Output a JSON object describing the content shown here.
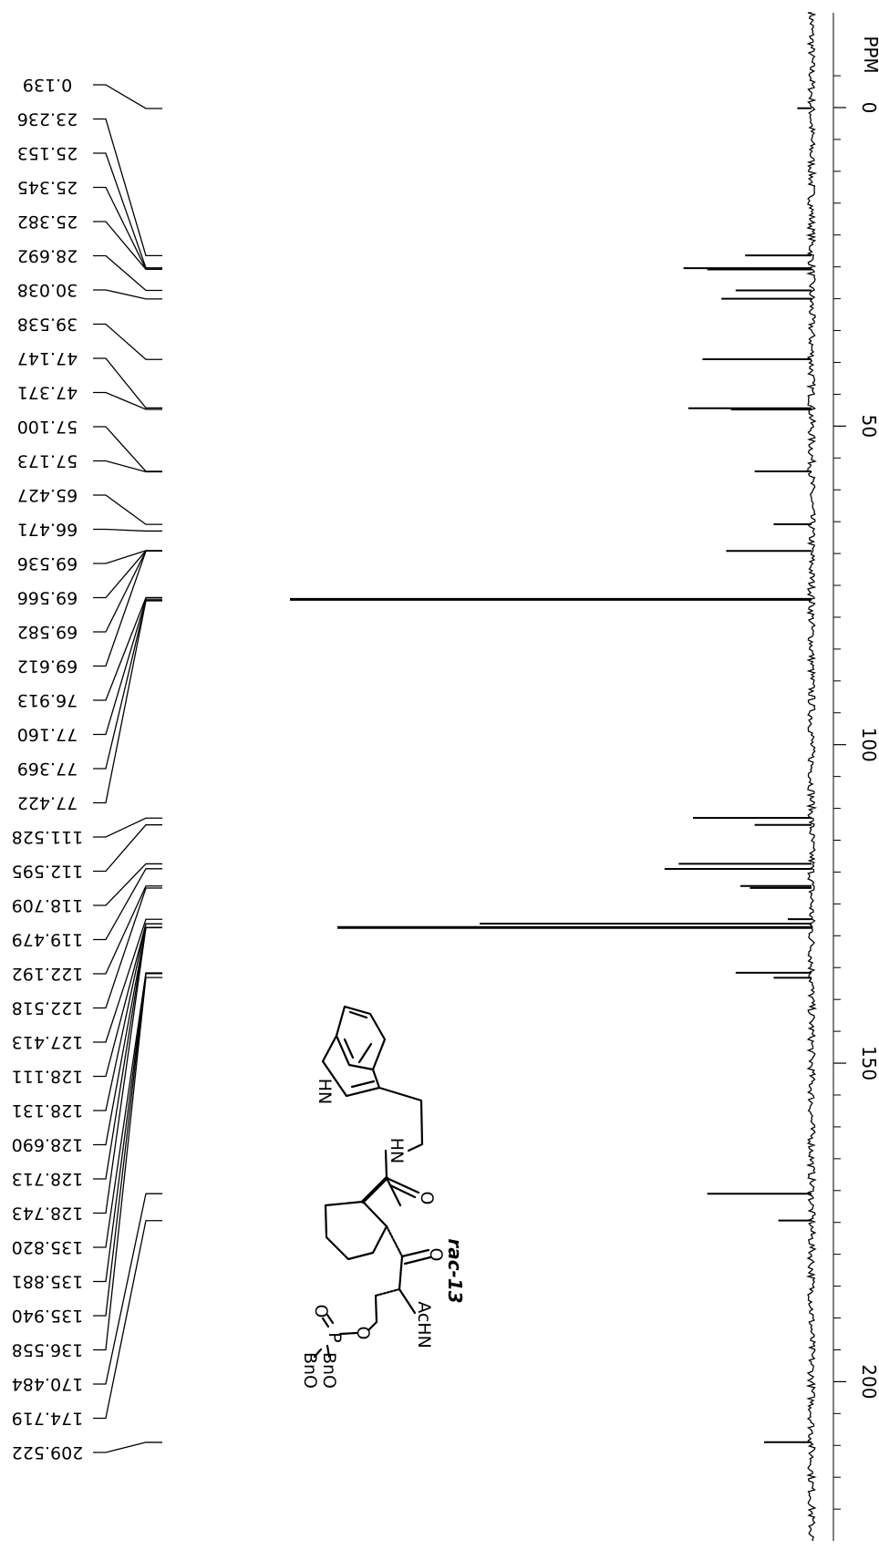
{
  "chart_data": {
    "type": "nmr-spectrum",
    "orientation": "rotated-90",
    "title": "",
    "axis": {
      "label": "PPM",
      "range": [
        -5,
        220
      ],
      "major_ticks": [
        0,
        50,
        100,
        150,
        200
      ],
      "tick_labels": [
        "0",
        "50",
        "100",
        "150",
        "200"
      ],
      "minor_ticks": [
        -5,
        5,
        10,
        15,
        20,
        25,
        30,
        35,
        40,
        45,
        55,
        60,
        65,
        70,
        75,
        80,
        85,
        90,
        95,
        105,
        110,
        115,
        120,
        125,
        130,
        135,
        140,
        145,
        155,
        160,
        165,
        170,
        175,
        180,
        185,
        190,
        195,
        205,
        210,
        215,
        220
      ]
    },
    "peak_labels": [
      "0.139",
      "23.236",
      "25.153",
      "25.345",
      "25.382",
      "28.692",
      "30.038",
      "39.538",
      "47.147",
      "47.371",
      "57.100",
      "57.173",
      "65.427",
      "66.471",
      "69.536",
      "69.566",
      "69.582",
      "69.612",
      "76.913",
      "77.160",
      "77.369",
      "77.422",
      "111.528",
      "112.595",
      "118.709",
      "119.479",
      "122.192",
      "122.518",
      "127.413",
      "128.111",
      "128.131",
      "128.690",
      "128.713",
      "128.743",
      "135.820",
      "135.881",
      "135.940",
      "136.558",
      "170.484",
      "174.719",
      "209.522"
    ],
    "peaks": [
      {
        "ppm": 0.1,
        "height": 0.03
      },
      {
        "ppm": 23.2,
        "height": 0.14
      },
      {
        "ppm": 25.2,
        "height": 0.27
      },
      {
        "ppm": 25.4,
        "height": 0.22
      },
      {
        "ppm": 28.7,
        "height": 0.16
      },
      {
        "ppm": 30.0,
        "height": 0.19
      },
      {
        "ppm": 39.5,
        "height": 0.23
      },
      {
        "ppm": 47.2,
        "height": 0.26
      },
      {
        "ppm": 47.4,
        "height": 0.17
      },
      {
        "ppm": 57.1,
        "height": 0.12
      },
      {
        "ppm": 65.4,
        "height": 0.08
      },
      {
        "ppm": 69.6,
        "height": 0.18
      },
      {
        "ppm": 77.2,
        "height": 1.1
      },
      {
        "ppm": 111.5,
        "height": 0.25
      },
      {
        "ppm": 112.6,
        "height": 0.12
      },
      {
        "ppm": 118.7,
        "height": 0.28
      },
      {
        "ppm": 119.5,
        "height": 0.31
      },
      {
        "ppm": 122.2,
        "height": 0.15
      },
      {
        "ppm": 122.5,
        "height": 0.13
      },
      {
        "ppm": 127.4,
        "height": 0.05
      },
      {
        "ppm": 128.1,
        "height": 0.7
      },
      {
        "ppm": 128.7,
        "height": 1.0
      },
      {
        "ppm": 135.8,
        "height": 0.16
      },
      {
        "ppm": 136.6,
        "height": 0.08
      },
      {
        "ppm": 170.5,
        "height": 0.22
      },
      {
        "ppm": 174.7,
        "height": 0.07
      },
      {
        "ppm": 209.5,
        "height": 0.1
      }
    ],
    "molecule": {
      "compound_label": "rac-13",
      "atom_labels": {
        "nh_indole": "HN",
        "nh_amide": "HN",
        "o_amide": "O",
        "o_ketone": "O",
        "achn": "AcHN",
        "p": "P",
        "o_ester": "O",
        "o_phosphoryl": "O",
        "obn_1": "BnO",
        "obn_2": "BnO"
      }
    }
  }
}
